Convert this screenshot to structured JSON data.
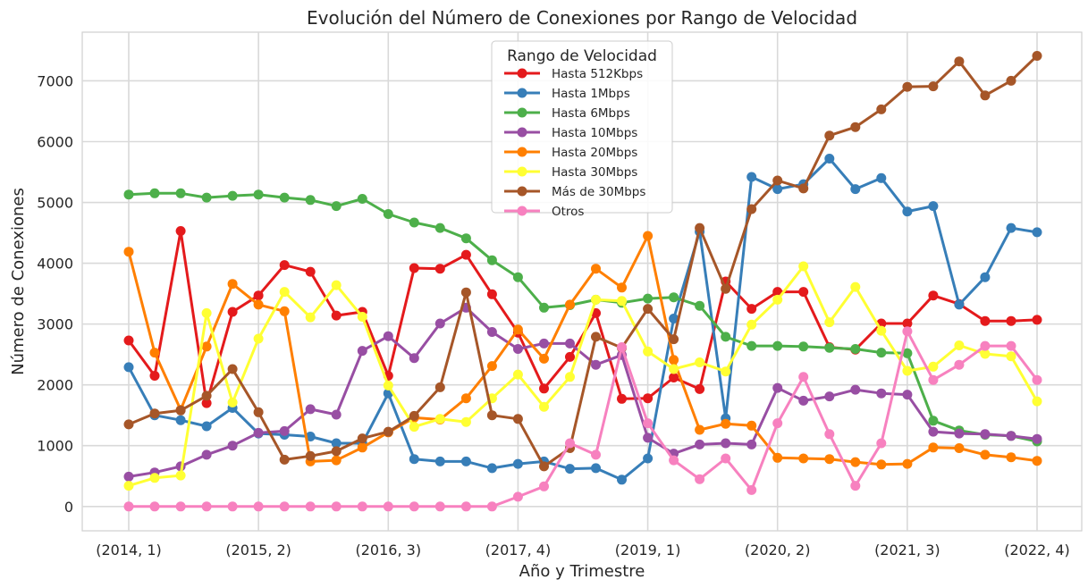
{
  "chart_data": {
    "type": "line",
    "title": "Evolución del Número de Conexiones por Rango de Velocidad",
    "xlabel": "Año y Trimestre",
    "ylabel": "Número de Conexiones",
    "ylim": [
      -400,
      7800
    ],
    "yticks": [
      0,
      1000,
      2000,
      3000,
      4000,
      5000,
      6000,
      7000
    ],
    "grid": true,
    "legend_title": "Rango de Velocidad",
    "legend_position": "top-center",
    "x": [
      "(2014, 1)",
      "(2014, 2)",
      "(2014, 3)",
      "(2014, 4)",
      "(2015, 1)",
      "(2015, 2)",
      "(2015, 3)",
      "(2015, 4)",
      "(2016, 1)",
      "(2016, 2)",
      "(2016, 3)",
      "(2016, 4)",
      "(2017, 1)",
      "(2017, 2)",
      "(2017, 3)",
      "(2017, 4)",
      "(2018, 1)",
      "(2018, 2)",
      "(2018, 3)",
      "(2018, 4)",
      "(2019, 1)",
      "(2019, 2)",
      "(2019, 3)",
      "(2019, 4)",
      "(2020, 1)",
      "(2020, 2)",
      "(2020, 3)",
      "(2020, 4)",
      "(2021, 1)",
      "(2021, 2)",
      "(2021, 3)",
      "(2021, 4)",
      "(2022, 1)",
      "(2022, 2)",
      "(2022, 3)",
      "(2022, 4)"
    ],
    "xtick_labels": [
      "(2014, 1)",
      "(2015, 2)",
      "(2016, 3)",
      "(2017, 4)",
      "(2019, 1)",
      "(2020, 2)",
      "(2021, 3)",
      "(2022, 4)"
    ],
    "xtick_indices": [
      0,
      5,
      10,
      15,
      20,
      25,
      30,
      35
    ],
    "series": [
      {
        "name": "Hasta 512Kbps",
        "color": "#e41a1c",
        "values": [
          2730,
          2150,
          4530,
          1700,
          3200,
          3470,
          3970,
          3860,
          3140,
          3200,
          2150,
          3920,
          3910,
          4140,
          3490,
          2860,
          1940,
          2460,
          3180,
          1770,
          1780,
          2120,
          1930,
          3700,
          3250,
          3530,
          3530,
          2620,
          2580,
          3010,
          3010,
          3470,
          3330,
          3050,
          3050,
          3070
        ]
      },
      {
        "name": "Hasta 1Mbps",
        "color": "#377eb8",
        "values": [
          2290,
          1500,
          1420,
          1320,
          1620,
          1200,
          1180,
          1150,
          1040,
          1040,
          1860,
          780,
          740,
          740,
          630,
          700,
          740,
          620,
          630,
          440,
          790,
          3090,
          4520,
          1450,
          5420,
          5220,
          5300,
          5720,
          5220,
          5400,
          4850,
          4940,
          3320,
          3770,
          4580,
          4510
        ]
      },
      {
        "name": "Hasta 6Mbps",
        "color": "#4daf4a",
        "values": [
          5130,
          5150,
          5150,
          5080,
          5110,
          5130,
          5080,
          5040,
          4940,
          5060,
          4810,
          4670,
          4580,
          4410,
          4050,
          3770,
          3270,
          3310,
          3400,
          3350,
          3420,
          3440,
          3300,
          2790,
          2640,
          2640,
          2630,
          2610,
          2590,
          2530,
          2520,
          1410,
          1250,
          1180,
          1160,
          1070
        ]
      },
      {
        "name": "Hasta 10Mbps",
        "color": "#984ea3",
        "values": [
          490,
          560,
          660,
          850,
          1000,
          1210,
          1240,
          1600,
          1510,
          2560,
          2800,
          2440,
          3010,
          3270,
          2870,
          2590,
          2680,
          2680,
          2330,
          2490,
          1130,
          870,
          1020,
          1040,
          1020,
          1950,
          1740,
          1810,
          1920,
          1860,
          1840,
          1230,
          1200,
          1190,
          1160,
          1110
        ]
      },
      {
        "name": "Hasta 20Mbps",
        "color": "#ff7f00",
        "values": [
          4190,
          2530,
          1590,
          2630,
          3660,
          3320,
          3210,
          740,
          760,
          970,
          1220,
          1460,
          1430,
          1780,
          2310,
          2910,
          2430,
          3320,
          3910,
          3600,
          4450,
          2410,
          1260,
          1360,
          1330,
          800,
          790,
          780,
          730,
          690,
          700,
          970,
          960,
          850,
          810,
          750
        ]
      },
      {
        "name": "Hasta 30Mbps",
        "color": "#ffff33",
        "values": [
          340,
          470,
          510,
          3180,
          1710,
          2760,
          3530,
          3110,
          3640,
          3120,
          1990,
          1310,
          1440,
          1390,
          1780,
          2170,
          1640,
          2130,
          3400,
          3380,
          2550,
          2260,
          2370,
          2220,
          2990,
          3400,
          3950,
          3030,
          3610,
          2890,
          2230,
          2300,
          2650,
          2510,
          2470,
          1730
        ]
      },
      {
        "name": "Más de 30Mbps",
        "color": "#a65628",
        "values": [
          1350,
          1530,
          1580,
          1820,
          2260,
          1550,
          770,
          830,
          910,
          1120,
          1230,
          1490,
          1960,
          3520,
          1500,
          1440,
          660,
          960,
          2790,
          2610,
          3250,
          2750,
          4580,
          3580,
          4890,
          5360,
          5230,
          6100,
          6240,
          6530,
          6900,
          6910,
          7320,
          6760,
          7000,
          7410
        ]
      },
      {
        "name": "Otros",
        "color": "#f781bf",
        "values": [
          0,
          0,
          0,
          0,
          0,
          0,
          0,
          0,
          0,
          0,
          0,
          0,
          0,
          0,
          0,
          160,
          330,
          1040,
          850,
          2620,
          1370,
          760,
          450,
          790,
          270,
          1370,
          2130,
          1190,
          340,
          1040,
          2880,
          2080,
          2330,
          2640,
          2640,
          2080
        ]
      }
    ]
  }
}
